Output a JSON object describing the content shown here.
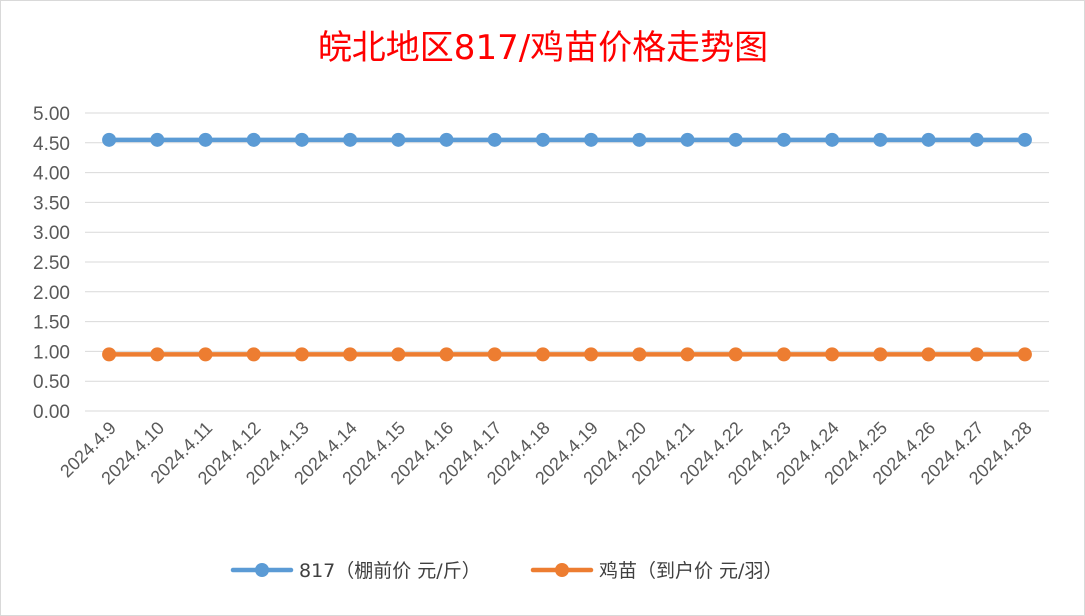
{
  "chart_data": {
    "type": "line",
    "title": "皖北地区817/鸡苗价格走势图",
    "categories": [
      "2024.4.9",
      "2024.4.10",
      "2024.4.11",
      "2024.4.12",
      "2024.4.13",
      "2024.4.14",
      "2024.4.15",
      "2024.4.16",
      "2024.4.17",
      "2024.4.18",
      "2024.4.19",
      "2024.4.20",
      "2024.4.21",
      "2024.4.22",
      "2024.4.23",
      "2024.4.24",
      "2024.4.25",
      "2024.4.26",
      "2024.4.27",
      "2024.4.28"
    ],
    "series": [
      {
        "name": "817（棚前价 元/斤）",
        "color": "#5b9bd5",
        "values": [
          4.55,
          4.55,
          4.55,
          4.55,
          4.55,
          4.55,
          4.55,
          4.55,
          4.55,
          4.55,
          4.55,
          4.55,
          4.55,
          4.55,
          4.55,
          4.55,
          4.55,
          4.55,
          4.55,
          4.55
        ]
      },
      {
        "name": "鸡苗（到户价 元/羽）",
        "color": "#ed7d31",
        "values": [
          0.95,
          0.95,
          0.95,
          0.95,
          0.95,
          0.95,
          0.95,
          0.95,
          0.95,
          0.95,
          0.95,
          0.95,
          0.95,
          0.95,
          0.95,
          0.95,
          0.95,
          0.95,
          0.95,
          0.95
        ]
      }
    ],
    "ylim": [
      0,
      5
    ],
    "yticks": [
      "0.00",
      "0.50",
      "1.00",
      "1.50",
      "2.00",
      "2.50",
      "3.00",
      "3.50",
      "4.00",
      "4.50",
      "5.00"
    ],
    "xlabel": "",
    "ylabel": "",
    "grid": true,
    "legend": "bottom",
    "title_color": "#ff0000"
  }
}
